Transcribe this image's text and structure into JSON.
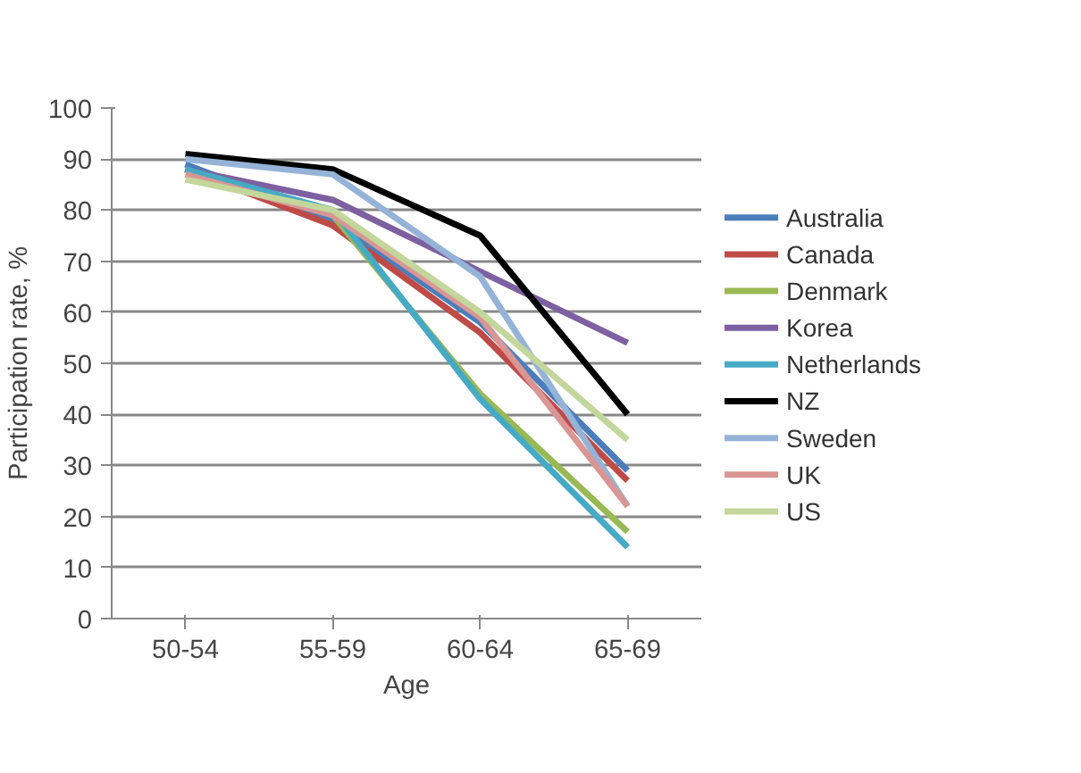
{
  "chart_data": {
    "type": "line",
    "xlabel": "Age",
    "ylabel": "Participation rate, %",
    "categories": [
      "50-54",
      "55-59",
      "60-64",
      "65-69"
    ],
    "ylim": [
      0,
      100
    ],
    "yticks": [
      0,
      10,
      20,
      30,
      40,
      50,
      60,
      70,
      80,
      90,
      100
    ],
    "grid": "y",
    "legend": "right",
    "marker": "none",
    "line_style": "solid",
    "series": [
      {
        "name": "Australia",
        "color": "#4a7ebb",
        "values": [
          89,
          78,
          58,
          29
        ]
      },
      {
        "name": "Canada",
        "color": "#be4b48",
        "values": [
          88,
          77,
          56,
          27
        ]
      },
      {
        "name": "Denmark",
        "color": "#98b954",
        "values": [
          88,
          79,
          44,
          17
        ]
      },
      {
        "name": "Korea",
        "color": "#7d60a0",
        "values": [
          88,
          82,
          68,
          54
        ]
      },
      {
        "name": "Netherlands",
        "color": "#46aac5",
        "values": [
          88,
          80,
          43,
          14
        ]
      },
      {
        "name": "NZ",
        "color": "#000000",
        "values": [
          91,
          88,
          75,
          40
        ]
      },
      {
        "name": "Sweden",
        "color": "#95b3d7",
        "values": [
          90,
          87,
          67,
          22
        ]
      },
      {
        "name": "UK",
        "color": "#d99694",
        "values": [
          87,
          79,
          59,
          22
        ]
      },
      {
        "name": "US",
        "color": "#c3d69b",
        "values": [
          86,
          80,
          60,
          35
        ]
      }
    ]
  }
}
